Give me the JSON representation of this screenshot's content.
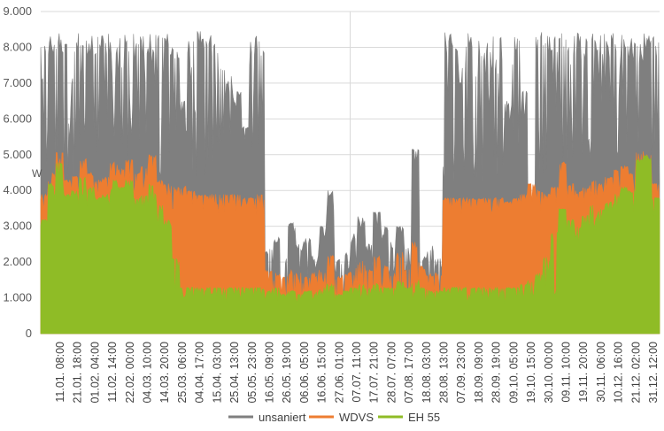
{
  "chart_data": {
    "type": "area",
    "ylabel": "W",
    "ylim": [
      0,
      9000
    ],
    "y_ticks": [
      "0",
      "1.000",
      "2.000",
      "3.000",
      "4.000",
      "5.000",
      "6.000",
      "7.000",
      "8.000",
      "9.000"
    ],
    "x_tick_labels": [
      "11.01. 08:00",
      "21.01. 18:00",
      "01.02. 04:00",
      "11.02. 14:00",
      "22.02. 00:00",
      "04.03. 10:00",
      "14.03. 20:00",
      "25.03. 06:00",
      "04.04. 17:00",
      "15.04. 03:00",
      "25.04. 13:00",
      "05.05. 23:00",
      "16.05. 09:00",
      "26.05. 19:00",
      "06.06. 05:00",
      "16.06. 15:00",
      "27.06. 01:00",
      "07.07. 11:00",
      "17.07. 21:00",
      "28.07. 07:00",
      "07.08. 17:00",
      "18.08. 03:00",
      "28.08. 13:00",
      "07.09. 23:00",
      "18.09. 09:00",
      "28.09. 19:00",
      "09.10. 05:00",
      "19.10. 15:00",
      "30.10. 00:00",
      "09.11. 10:00",
      "19.11. 20:00",
      "30.11. 06:00",
      "10.12. 16:00",
      "21.12. 02:00",
      "31.12. 12:00"
    ],
    "grid": true,
    "legend_position": "bottom",
    "series": [
      {
        "name": "unsaniert",
        "color": "#7f7f7f",
        "segment_max": [
          8400,
          8400,
          8400,
          8400,
          8400,
          8400,
          8400,
          8400,
          8400,
          8400,
          8400,
          8400,
          8400,
          8400,
          8400,
          8400,
          8400,
          8200,
          6500,
          8450,
          8450,
          8450,
          8450,
          7500,
          7300,
          6800,
          5800,
          8400,
          8400,
          2400,
          2700,
          2100,
          3100,
          2500,
          2700,
          2200,
          3000,
          4000,
          2100,
          2300,
          2800,
          3300,
          2500,
          3400,
          3000,
          2600,
          3000,
          2400,
          5200,
          2200,
          2500,
          2100,
          8450,
          8450,
          7500,
          8450,
          8300,
          8200,
          8450,
          8450,
          6500,
          8400,
          6800,
          3000,
          8450,
          8400,
          8400,
          8400,
          8400,
          8400,
          8400,
          8400,
          8400,
          8400,
          8400,
          8400,
          8400,
          8300,
          8400,
          8400
        ]
      },
      {
        "name": "WDVS",
        "color": "#ed7d31",
        "segment_max": [
          3900,
          4500,
          5100,
          4300,
          4400,
          4900,
          4500,
          4300,
          4400,
          4800,
          4600,
          4900,
          4500,
          4700,
          5000,
          4300,
          4200,
          4100,
          4200,
          4000,
          3900,
          3900,
          3900,
          3900,
          3900,
          3900,
          3800,
          3800,
          3900,
          1800,
          1700,
          1600,
          1800,
          1700,
          1600,
          1700,
          1800,
          2200,
          1600,
          1700,
          1900,
          2100,
          1800,
          2200,
          1900,
          1700,
          2300,
          1800,
          2600,
          1900,
          1700,
          1700,
          3800,
          3800,
          3800,
          3800,
          3800,
          3800,
          3800,
          3800,
          3700,
          3800,
          3900,
          4200,
          4000,
          3900,
          4100,
          4800,
          4200,
          4000,
          4100,
          4300,
          4200,
          4400,
          4600,
          4700,
          4500,
          5100,
          5000,
          4200
        ]
      },
      {
        "name": "EH 55",
        "color": "#8fbc26",
        "segment_max": [
          3200,
          4200,
          4800,
          3900,
          4000,
          4400,
          4100,
          3800,
          3900,
          4300,
          4100,
          4300,
          3800,
          3900,
          4200,
          3600,
          3200,
          2100,
          1300,
          1300,
          1300,
          1300,
          1300,
          1300,
          1300,
          1300,
          1300,
          1300,
          1300,
          1200,
          1300,
          1100,
          1200,
          1100,
          1200,
          1200,
          1300,
          1400,
          1100,
          1200,
          1300,
          1400,
          1300,
          1400,
          1300,
          1300,
          1500,
          1300,
          1500,
          1300,
          1200,
          1200,
          1300,
          1300,
          1300,
          1300,
          1300,
          1300,
          1300,
          1300,
          1300,
          1300,
          1400,
          1500,
          1700,
          2200,
          2900,
          3500,
          3200,
          3000,
          3300,
          3600,
          3500,
          3700,
          3900,
          4100,
          4000,
          4900,
          5000,
          3800
        ]
      }
    ]
  }
}
